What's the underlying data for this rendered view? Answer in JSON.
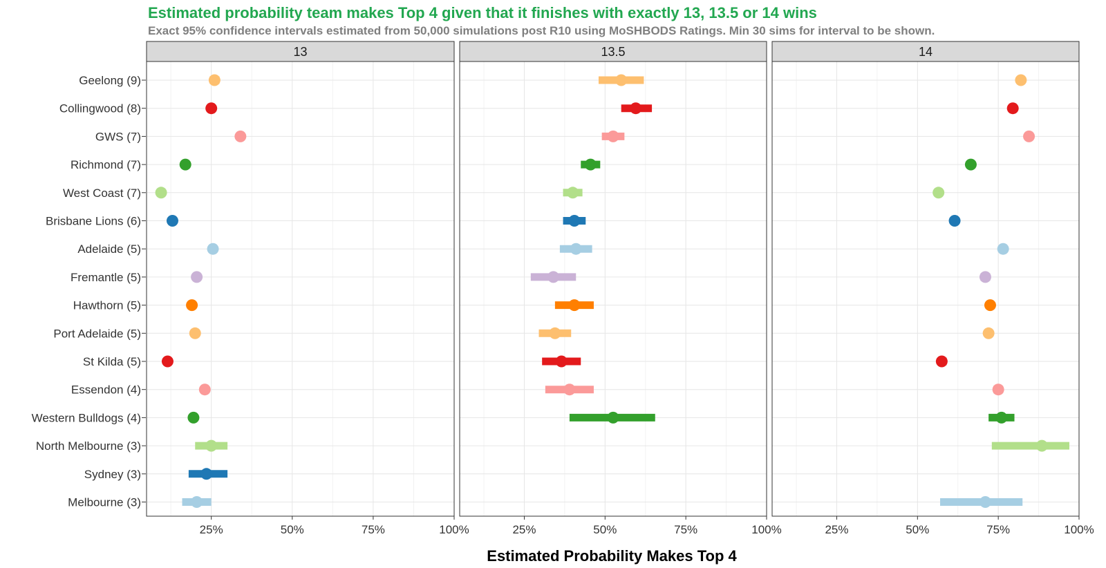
{
  "chart_data": {
    "type": "dot-interval",
    "title": "Estimated probability team makes Top 4 given that it finishes with exactly 13, 13.5 or 14 wins",
    "subtitle": "Exact 95% confidence intervals estimated from 50,000 simulations post R10 using MoSHBODS Ratings. Min 30 sims for interval to be shown.",
    "xlabel": "Estimated Probability Makes Top 4",
    "xlim": [
      0.05,
      1.0
    ],
    "x_ticks": [
      0.25,
      0.5,
      0.75,
      1.0
    ],
    "x_tick_labels": [
      "25%",
      "50%",
      "75%",
      "100%"
    ],
    "grid": true,
    "colors": {
      "title": "#22a750",
      "subtitle": "#7f7f7f",
      "strip_fill": "#d9d9d9",
      "panel_border": "#333333",
      "grid_major": "#e6e6e6",
      "grid_minor": "#f2f2f2"
    },
    "teams": [
      {
        "label": "Geelong (9)",
        "color": "#fdbf6f"
      },
      {
        "label": "Collingwood (8)",
        "color": "#e31a1c"
      },
      {
        "label": "GWS (7)",
        "color": "#fb9a99"
      },
      {
        "label": "Richmond (7)",
        "color": "#33a02c"
      },
      {
        "label": "West Coast (7)",
        "color": "#b2df8a"
      },
      {
        "label": "Brisbane Lions (6)",
        "color": "#1f78b4"
      },
      {
        "label": "Adelaide (5)",
        "color": "#a6cee3"
      },
      {
        "label": "Fremantle (5)",
        "color": "#cab2d6"
      },
      {
        "label": "Hawthorn (5)",
        "color": "#ff7f00"
      },
      {
        "label": "Port Adelaide (5)",
        "color": "#fdbf6f"
      },
      {
        "label": "St Kilda (5)",
        "color": "#e31a1c"
      },
      {
        "label": "Essendon (4)",
        "color": "#fb9a99"
      },
      {
        "label": "Western Bulldogs (4)",
        "color": "#33a02c"
      },
      {
        "label": "North Melbourne (3)",
        "color": "#b2df8a"
      },
      {
        "label": "Sydney (3)",
        "color": "#1f78b4"
      },
      {
        "label": "Melbourne (3)",
        "color": "#a6cee3"
      }
    ],
    "panels": [
      {
        "label": "13",
        "points": [
          {
            "est": 0.26,
            "lo": 0.245,
            "hi": 0.275
          },
          {
            "est": 0.25,
            "lo": null,
            "hi": null
          },
          {
            "est": 0.34,
            "lo": null,
            "hi": null
          },
          {
            "est": 0.17,
            "lo": null,
            "hi": null
          },
          {
            "est": 0.095,
            "lo": null,
            "hi": null
          },
          {
            "est": 0.13,
            "lo": null,
            "hi": null
          },
          {
            "est": 0.255,
            "lo": null,
            "hi": null
          },
          {
            "est": 0.205,
            "lo": null,
            "hi": null
          },
          {
            "est": 0.19,
            "lo": null,
            "hi": null
          },
          {
            "est": 0.2,
            "lo": null,
            "hi": null
          },
          {
            "est": 0.115,
            "lo": null,
            "hi": null
          },
          {
            "est": 0.23,
            "lo": null,
            "hi": null
          },
          {
            "est": 0.195,
            "lo": 0.185,
            "hi": 0.205
          },
          {
            "est": 0.25,
            "lo": 0.2,
            "hi": 0.3
          },
          {
            "est": 0.235,
            "lo": 0.18,
            "hi": 0.3
          },
          {
            "est": 0.205,
            "lo": 0.16,
            "hi": 0.25
          }
        ]
      },
      {
        "label": "13.5",
        "points": [
          {
            "est": 0.55,
            "lo": 0.48,
            "hi": 0.62
          },
          {
            "est": 0.595,
            "lo": 0.55,
            "hi": 0.645
          },
          {
            "est": 0.525,
            "lo": 0.49,
            "hi": 0.56
          },
          {
            "est": 0.455,
            "lo": 0.425,
            "hi": 0.485
          },
          {
            "est": 0.4,
            "lo": 0.37,
            "hi": 0.43
          },
          {
            "est": 0.405,
            "lo": 0.37,
            "hi": 0.44
          },
          {
            "est": 0.41,
            "lo": 0.36,
            "hi": 0.46
          },
          {
            "est": 0.34,
            "lo": 0.27,
            "hi": 0.41
          },
          {
            "est": 0.405,
            "lo": 0.345,
            "hi": 0.465
          },
          {
            "est": 0.345,
            "lo": 0.295,
            "hi": 0.395
          },
          {
            "est": 0.365,
            "lo": 0.305,
            "hi": 0.425
          },
          {
            "est": 0.39,
            "lo": 0.315,
            "hi": 0.465
          },
          {
            "est": 0.525,
            "lo": 0.39,
            "hi": 0.655
          },
          {
            "est": null,
            "lo": null,
            "hi": null
          },
          {
            "est": null,
            "lo": null,
            "hi": null
          },
          {
            "est": null,
            "lo": null,
            "hi": null
          }
        ]
      },
      {
        "label": "14",
        "points": [
          {
            "est": 0.82,
            "lo": null,
            "hi": null
          },
          {
            "est": 0.795,
            "lo": null,
            "hi": null
          },
          {
            "est": 0.845,
            "lo": null,
            "hi": null
          },
          {
            "est": 0.665,
            "lo": null,
            "hi": null
          },
          {
            "est": 0.565,
            "lo": null,
            "hi": null
          },
          {
            "est": 0.615,
            "lo": null,
            "hi": null
          },
          {
            "est": 0.765,
            "lo": null,
            "hi": null
          },
          {
            "est": 0.71,
            "lo": 0.695,
            "hi": 0.725
          },
          {
            "est": 0.725,
            "lo": 0.715,
            "hi": 0.735
          },
          {
            "est": 0.72,
            "lo": null,
            "hi": null
          },
          {
            "est": 0.575,
            "lo": 0.565,
            "hi": 0.59
          },
          {
            "est": 0.75,
            "lo": 0.735,
            "hi": 0.765
          },
          {
            "est": 0.76,
            "lo": 0.72,
            "hi": 0.8
          },
          {
            "est": 0.885,
            "lo": 0.73,
            "hi": 0.97
          },
          {
            "est": null,
            "lo": null,
            "hi": null
          },
          {
            "est": 0.71,
            "lo": 0.57,
            "hi": 0.825
          }
        ]
      }
    ]
  }
}
